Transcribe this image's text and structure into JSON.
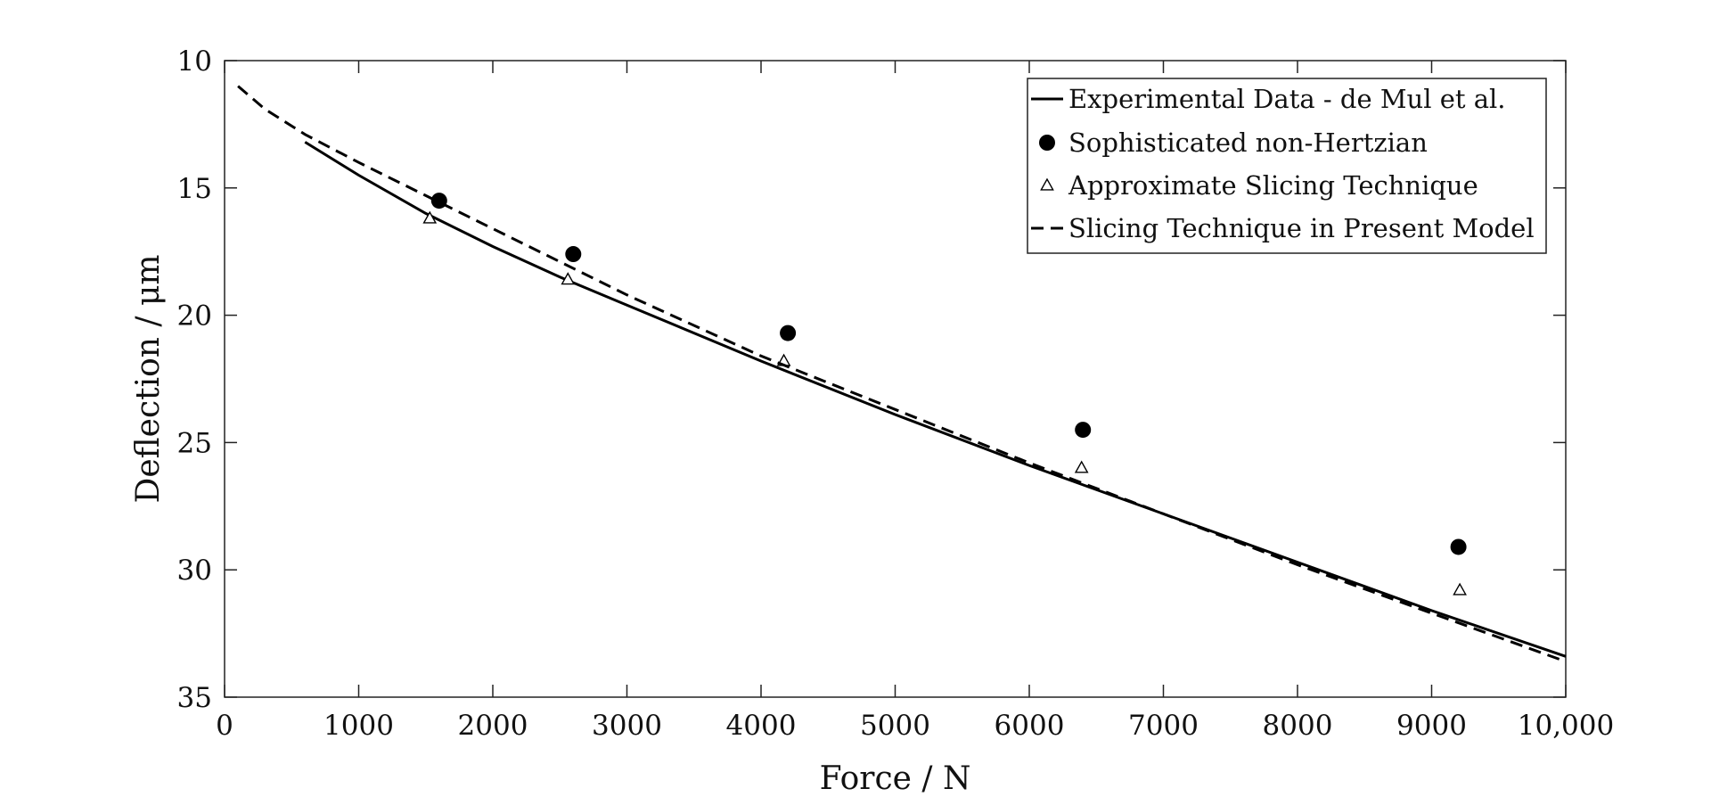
{
  "chart_data": {
    "type": "scatter",
    "title": "",
    "xlabel": "Force / N",
    "ylabel": "Deflection / μm",
    "xlim": [
      0,
      10000
    ],
    "ylim": [
      10,
      35
    ],
    "y_inverted": true,
    "grid": false,
    "legend_position": "top-right",
    "x_ticks": [
      0,
      1000,
      2000,
      3000,
      4000,
      5000,
      6000,
      7000,
      8000,
      9000,
      10000
    ],
    "x_tick_labels": [
      "0",
      "1000",
      "2000",
      "3000",
      "4000",
      "5000",
      "6000",
      "7000",
      "8000",
      "9000",
      "10,000"
    ],
    "y_ticks": [
      10,
      15,
      20,
      25,
      30,
      35
    ],
    "y_tick_labels": [
      "10",
      "15",
      "20",
      "25",
      "30",
      "35"
    ],
    "series": [
      {
        "name": "Experimental Data - de Mul et al.",
        "style": "solid-line",
        "x": [
          600,
          1000,
          1500,
          2000,
          2500,
          3000,
          4000,
          5000,
          6000,
          7000,
          8000,
          9000,
          10000
        ],
        "y": [
          13.2,
          14.5,
          16.0,
          17.3,
          18.5,
          19.6,
          21.8,
          23.9,
          25.9,
          27.8,
          29.7,
          31.6,
          33.4
        ]
      },
      {
        "name": "Sophisticated non-Hertzian",
        "style": "filled-circle",
        "x": [
          1600,
          2600,
          4200,
          6400,
          9200
        ],
        "y": [
          15.5,
          17.6,
          20.7,
          24.5,
          29.1
        ]
      },
      {
        "name": "Approximate Slicing Technique",
        "style": "open-triangle",
        "x": [
          1530,
          2560,
          4170,
          6390,
          9210
        ],
        "y": [
          16.2,
          18.6,
          21.8,
          26.0,
          30.8
        ]
      },
      {
        "name": "Slicing Technique in Present Model",
        "style": "dashed-line",
        "x": [
          100,
          300,
          600,
          1000,
          1500,
          2000,
          2500,
          3000,
          4000,
          5000,
          6000,
          7000,
          8000,
          9000,
          10000
        ],
        "y": [
          11.0,
          11.9,
          12.9,
          14.0,
          15.3,
          16.6,
          17.9,
          19.2,
          21.6,
          23.7,
          25.8,
          27.8,
          29.8,
          31.7,
          33.6
        ]
      }
    ]
  }
}
